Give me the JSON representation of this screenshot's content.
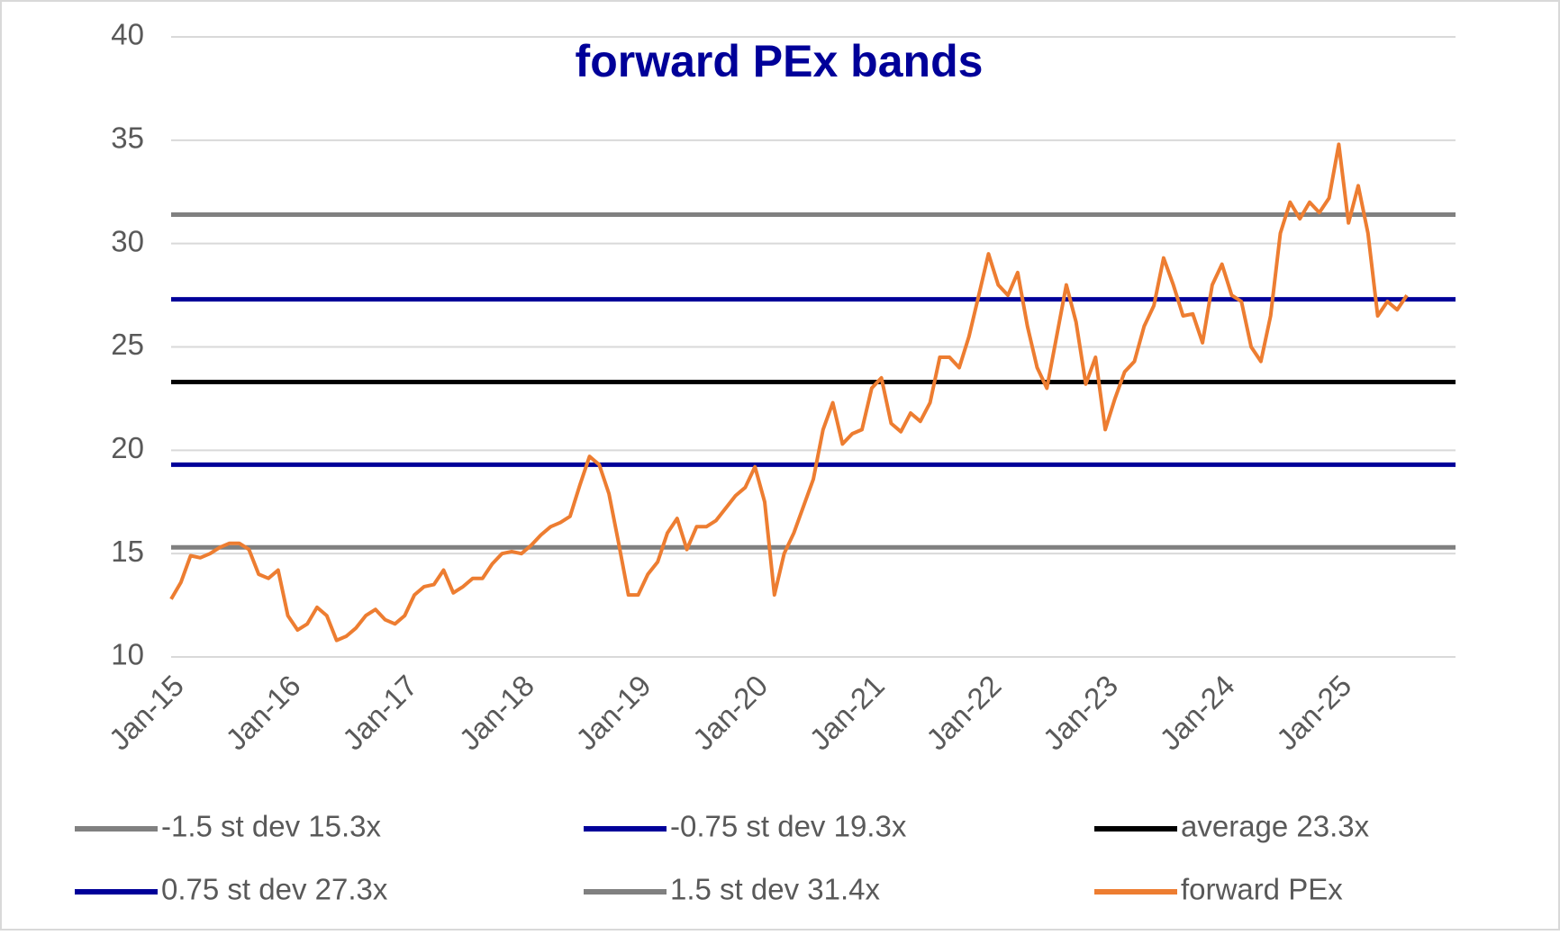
{
  "chart_data": {
    "type": "line",
    "title": "forward PEx bands",
    "x": [
      "2015-01",
      "2015-02",
      "2015-03",
      "2015-04",
      "2015-05",
      "2015-06",
      "2015-07",
      "2015-08",
      "2015-09",
      "2015-10",
      "2015-11",
      "2015-12",
      "2016-01",
      "2016-02",
      "2016-03",
      "2016-04",
      "2016-05",
      "2016-06",
      "2016-07",
      "2016-08",
      "2016-09",
      "2016-10",
      "2016-11",
      "2016-12",
      "2017-01",
      "2017-02",
      "2017-03",
      "2017-04",
      "2017-05",
      "2017-06",
      "2017-07",
      "2017-08",
      "2017-09",
      "2017-10",
      "2017-11",
      "2017-12",
      "2018-01",
      "2018-02",
      "2018-03",
      "2018-04",
      "2018-05",
      "2018-06",
      "2018-07",
      "2018-08",
      "2018-09",
      "2018-10",
      "2018-11",
      "2018-12",
      "2019-01",
      "2019-02",
      "2019-03",
      "2019-04",
      "2019-05",
      "2019-06",
      "2019-07",
      "2019-08",
      "2019-09",
      "2019-10",
      "2019-11",
      "2019-12",
      "2020-01",
      "2020-02",
      "2020-03",
      "2020-04",
      "2020-05",
      "2020-06",
      "2020-07",
      "2020-08",
      "2020-09",
      "2020-10",
      "2020-11",
      "2020-12",
      "2021-01",
      "2021-02",
      "2021-03",
      "2021-04",
      "2021-05",
      "2021-06",
      "2021-07",
      "2021-08",
      "2021-09",
      "2021-10",
      "2021-11",
      "2021-12",
      "2022-01",
      "2022-02",
      "2022-03",
      "2022-04",
      "2022-05",
      "2022-06",
      "2022-07",
      "2022-08",
      "2022-09",
      "2022-10",
      "2022-11",
      "2022-12",
      "2023-01",
      "2023-02",
      "2023-03",
      "2023-04",
      "2023-05",
      "2023-06",
      "2023-07",
      "2023-08",
      "2023-09",
      "2023-10",
      "2023-11",
      "2023-12",
      "2024-01",
      "2024-02",
      "2024-03",
      "2024-04",
      "2024-05",
      "2024-06",
      "2024-07",
      "2024-08",
      "2024-09",
      "2024-10",
      "2024-11",
      "2024-12",
      "2025-01",
      "2025-02",
      "2025-03",
      "2025-04",
      "2025-05",
      "2025-06",
      "2025-07",
      "2025-08"
    ],
    "bands": [
      {
        "name": "-1.5 st dev 15.3x",
        "color": "#808080",
        "value": 15.3
      },
      {
        "name": "-0.75 st dev 19.3x",
        "color": "#000099",
        "value": 19.3
      },
      {
        "name": "average 23.3x",
        "color": "#000000",
        "value": 23.3
      },
      {
        "name": "0.75 st dev 27.3x",
        "color": "#000099",
        "value": 27.3
      },
      {
        "name": "1.5 st dev 31.4x",
        "color": "#808080",
        "value": 31.4
      }
    ],
    "series": [
      {
        "name": "forward PEx",
        "color": "#ed7d31",
        "values": [
          12.8,
          13.6,
          14.9,
          14.8,
          15.0,
          15.3,
          15.5,
          15.5,
          15.2,
          14.0,
          13.8,
          14.2,
          12.0,
          11.3,
          11.6,
          12.4,
          12.0,
          10.8,
          11.0,
          11.4,
          12.0,
          12.3,
          11.8,
          11.6,
          12.0,
          13.0,
          13.4,
          13.5,
          14.2,
          13.1,
          13.4,
          13.8,
          13.8,
          14.5,
          15.0,
          15.1,
          15.0,
          15.4,
          15.9,
          16.3,
          16.5,
          16.8,
          18.3,
          19.7,
          19.3,
          17.9,
          15.5,
          13.0,
          13.0,
          14.0,
          14.6,
          16.0,
          16.7,
          15.2,
          16.3,
          16.3,
          16.6,
          17.2,
          17.8,
          18.2,
          19.2,
          17.5,
          13.0,
          15.0,
          16.0,
          17.3,
          18.6,
          21.0,
          22.3,
          20.3,
          20.8,
          21.0,
          23.0,
          23.5,
          21.3,
          20.9,
          21.8,
          21.4,
          22.3,
          24.5,
          24.5,
          24.0,
          25.5,
          27.5,
          29.5,
          28.0,
          27.5,
          28.6,
          26.0,
          24.0,
          23.0,
          25.5,
          28.0,
          26.2,
          23.2,
          24.5,
          21.0,
          22.5,
          23.8,
          24.3,
          26.0,
          27.0,
          29.3,
          28.0,
          26.5,
          26.6,
          25.2,
          28.0,
          29.0,
          27.5,
          27.2,
          25.0,
          24.3,
          26.5,
          30.5,
          32.0,
          31.2,
          32.0,
          31.5,
          32.2,
          34.8,
          31.0,
          32.8,
          30.5,
          26.5,
          27.2,
          26.8,
          27.5
        ]
      }
    ],
    "xlim": [
      "2015-01",
      "2026-01"
    ],
    "xticks": [
      {
        "value": "2015-01",
        "label": "Jan-15"
      },
      {
        "value": "2016-01",
        "label": "Jan-16"
      },
      {
        "value": "2017-01",
        "label": "Jan-17"
      },
      {
        "value": "2018-01",
        "label": "Jan-18"
      },
      {
        "value": "2019-01",
        "label": "Jan-19"
      },
      {
        "value": "2020-01",
        "label": "Jan-20"
      },
      {
        "value": "2021-01",
        "label": "Jan-21"
      },
      {
        "value": "2022-01",
        "label": "Jan-22"
      },
      {
        "value": "2023-01",
        "label": "Jan-23"
      },
      {
        "value": "2024-01",
        "label": "Jan-24"
      },
      {
        "value": "2025-01",
        "label": "Jan-25"
      }
    ],
    "ylim": [
      10,
      40
    ],
    "yticks": [
      10,
      15,
      20,
      25,
      30,
      35,
      40
    ],
    "grid": true,
    "legend": "bottom"
  }
}
